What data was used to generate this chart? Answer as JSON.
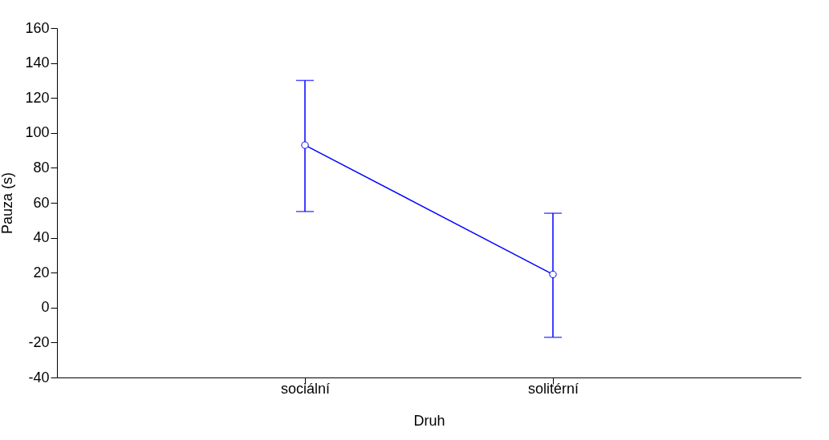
{
  "chart_data": {
    "type": "line",
    "xlabel": "Druh",
    "ylabel": "Pauza (s)",
    "categories": [
      "sociální",
      "solitérní"
    ],
    "series": [
      {
        "color": "#0000ff",
        "values": [
          93,
          19
        ],
        "errors": [
          [
            55,
            130
          ],
          [
            -17,
            54
          ]
        ]
      }
    ],
    "ylim": [
      -40,
      160
    ],
    "yticks": [
      -40,
      -20,
      0,
      20,
      40,
      60,
      80,
      100,
      120,
      140,
      160
    ],
    "grid": false,
    "marker": "circle",
    "line_style": "solid"
  }
}
